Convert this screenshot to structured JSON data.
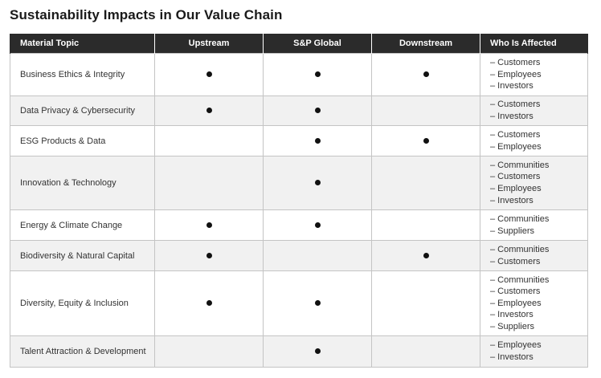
{
  "title": "Sustainability Impacts in Our Value Chain",
  "headers": [
    "Material Topic",
    "Upstream",
    "S&P Global",
    "Downstream",
    "Who Is Affected"
  ],
  "rows": [
    {
      "topic": "Business Ethics & Integrity",
      "upstream": true,
      "sp": true,
      "downstream": true,
      "affected": [
        "– Customers",
        "– Employees",
        "– Investors"
      ]
    },
    {
      "topic": "Data Privacy & Cybersecurity",
      "upstream": true,
      "sp": true,
      "downstream": false,
      "affected": [
        "– Customers",
        "– Investors"
      ]
    },
    {
      "topic": "ESG Products & Data",
      "upstream": false,
      "sp": true,
      "downstream": true,
      "affected": [
        "– Customers",
        "– Employees"
      ]
    },
    {
      "topic": "Innovation & Technology",
      "upstream": false,
      "sp": true,
      "downstream": false,
      "affected": [
        "– Communities",
        "– Customers",
        "– Employees",
        "– Investors"
      ]
    },
    {
      "topic": "Energy & Climate Change",
      "upstream": true,
      "sp": true,
      "downstream": false,
      "affected": [
        "– Communities",
        "– Suppliers"
      ]
    },
    {
      "topic": "Biodiversity & Natural Capital",
      "upstream": true,
      "sp": false,
      "downstream": true,
      "affected": [
        "– Communities",
        "– Customers"
      ]
    },
    {
      "topic": "Diversity, Equity & Inclusion",
      "upstream": true,
      "sp": true,
      "downstream": false,
      "affected": [
        "– Communities",
        "– Customers",
        "– Employees",
        "– Investors",
        "– Suppliers"
      ]
    },
    {
      "topic": "Talent Attraction & Development",
      "upstream": false,
      "sp": true,
      "downstream": false,
      "affected": [
        "– Employees",
        "– Investors"
      ]
    }
  ],
  "colors": {
    "header_bg": "#2b2b2b",
    "stripe_bg": "#f1f1f1",
    "border": "#c4c4c4"
  }
}
